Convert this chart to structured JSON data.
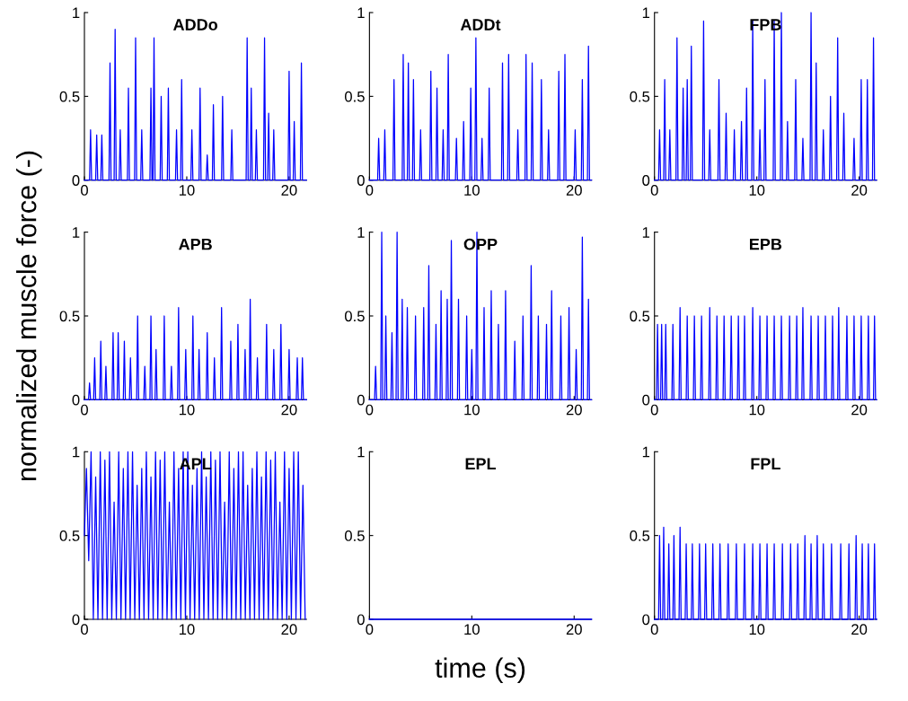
{
  "chart_data": [
    {
      "type": "line",
      "title": "ADDo",
      "xlim": [
        0,
        21.7
      ],
      "ylim": [
        0,
        1
      ],
      "xticks": [
        0,
        10,
        20
      ],
      "yticks": [
        0,
        0.5,
        1
      ],
      "series": [
        {
          "color": "#0000ff",
          "x": [
            0,
            0.5,
            0.6,
            0.7,
            1.1,
            1.2,
            1.3,
            1.6,
            1.7,
            1.8,
            2.4,
            2.5,
            2.6,
            2.9,
            3.0,
            3.1,
            3.4,
            3.5,
            3.6,
            4.2,
            4.3,
            4.4,
            4.9,
            5.0,
            5.1,
            5.5,
            5.6,
            5.7,
            6.4,
            6.5,
            6.6,
            6.7,
            6.8,
            6.9,
            7.4,
            7.5,
            7.6,
            8.1,
            8.2,
            8.3,
            8.9,
            9.0,
            9.1,
            9.4,
            9.5,
            9.6,
            10.4,
            10.5,
            10.6,
            11.2,
            11.3,
            11.4,
            11.9,
            12.0,
            12.1,
            12.5,
            12.6,
            12.7,
            13.4,
            13.5,
            13.6,
            14.3,
            14.4,
            14.5,
            15.8,
            15.9,
            16.0,
            16.2,
            16.3,
            16.4,
            16.7,
            16.8,
            16.9,
            17.5,
            17.6,
            17.7,
            17.9,
            18.0,
            18.1,
            18.4,
            18.5,
            18.6,
            19.9,
            20.0,
            20.1,
            20.4,
            20.5,
            20.6,
            21.1,
            21.2,
            21.3,
            21.7
          ],
          "values": [
            0,
            0,
            0.3,
            0,
            0,
            0.27,
            0,
            0,
            0.27,
            0,
            0,
            0.7,
            0,
            0,
            0.9,
            0,
            0,
            0.3,
            0,
            0,
            0.55,
            0,
            0,
            0.85,
            0,
            0,
            0.3,
            0,
            0,
            0.55,
            0,
            0,
            0.85,
            0,
            0,
            0.5,
            0,
            0,
            0.55,
            0,
            0,
            0.3,
            0,
            0,
            0.6,
            0,
            0,
            0.3,
            0,
            0,
            0.55,
            0,
            0,
            0.15,
            0,
            0,
            0.45,
            0,
            0,
            0.5,
            0,
            0,
            0.3,
            0,
            0,
            0.85,
            0,
            0,
            0.55,
            0,
            0,
            0.3,
            0,
            0,
            0.85,
            0,
            0,
            0.4,
            0,
            0,
            0.3,
            0,
            0,
            0.65,
            0,
            0,
            0.35,
            0,
            0,
            0.7,
            0,
            0
          ]
        }
      ]
    },
    {
      "type": "line",
      "title": "ADDt",
      "xlim": [
        0,
        21.7
      ],
      "ylim": [
        0,
        1
      ],
      "xticks": [
        0,
        10,
        20
      ],
      "yticks": [
        0,
        0.5,
        1
      ],
      "series": [
        {
          "color": "#0000ff",
          "x": [
            0,
            0.8,
            0.9,
            1.0,
            1.4,
            1.5,
            1.6,
            2.3,
            2.4,
            2.5,
            3.2,
            3.3,
            3.4,
            3.7,
            3.8,
            3.9,
            4.2,
            4.3,
            4.4,
            4.9,
            5.0,
            5.1,
            5.9,
            6.0,
            6.1,
            6.5,
            6.6,
            6.7,
            7.1,
            7.2,
            7.3,
            7.6,
            7.7,
            7.8,
            8.4,
            8.5,
            8.6,
            9.1,
            9.2,
            9.3,
            9.8,
            9.9,
            10.0,
            10.3,
            10.4,
            10.5,
            10.9,
            11.0,
            11.1,
            11.6,
            11.7,
            11.8,
            12.9,
            13.0,
            13.1,
            13.5,
            13.6,
            13.7,
            14.4,
            14.5,
            14.6,
            15.2,
            15.3,
            15.4,
            15.8,
            15.9,
            16.0,
            16.7,
            16.8,
            16.9,
            17.4,
            17.5,
            17.6,
            18.4,
            18.5,
            18.6,
            19.0,
            19.1,
            19.2,
            20.0,
            20.1,
            20.2,
            20.7,
            20.8,
            20.9,
            21.3,
            21.4,
            21.5,
            21.7
          ],
          "values": [
            0,
            0,
            0.25,
            0,
            0,
            0.3,
            0,
            0,
            0.6,
            0,
            0,
            0.75,
            0,
            0,
            0.7,
            0,
            0,
            0.6,
            0,
            0,
            0.3,
            0,
            0,
            0.65,
            0,
            0,
            0.55,
            0,
            0,
            0.3,
            0,
            0,
            0.75,
            0,
            0,
            0.25,
            0,
            0,
            0.35,
            0,
            0,
            0.55,
            0,
            0,
            0.85,
            0,
            0,
            0.25,
            0,
            0,
            0.55,
            0,
            0,
            0.7,
            0,
            0,
            0.75,
            0,
            0,
            0.3,
            0,
            0,
            0.75,
            0,
            0,
            0.7,
            0,
            0,
            0.6,
            0,
            0,
            0.3,
            0,
            0,
            0.65,
            0,
            0,
            0.75,
            0,
            0,
            0.3,
            0,
            0,
            0.6,
            0,
            0,
            0.8,
            0,
            0
          ]
        }
      ]
    },
    {
      "type": "line",
      "title": "FPB",
      "xlim": [
        0,
        21.7
      ],
      "ylim": [
        0,
        1
      ],
      "xticks": [
        0,
        10,
        20
      ],
      "yticks": [
        0,
        0.5,
        1
      ],
      "series": [
        {
          "color": "#0000ff",
          "x": [
            0,
            0.4,
            0.5,
            0.6,
            0.9,
            1.0,
            1.1,
            1.4,
            1.5,
            1.6,
            2.1,
            2.2,
            2.3,
            2.7,
            2.8,
            2.9,
            3.1,
            3.2,
            3.3,
            3.5,
            3.6,
            3.7,
            4.7,
            4.8,
            4.9,
            5.3,
            5.4,
            5.5,
            6.2,
            6.3,
            6.4,
            6.9,
            7.0,
            7.1,
            7.7,
            7.8,
            7.9,
            8.4,
            8.5,
            8.6,
            8.9,
            9.0,
            9.1,
            9.5,
            9.6,
            9.7,
            10.2,
            10.3,
            10.4,
            10.7,
            10.8,
            10.9,
            11.6,
            11.7,
            11.8,
            12.3,
            12.4,
            12.5,
            12.9,
            13.0,
            13.1,
            13.7,
            13.8,
            13.9,
            14.4,
            14.5,
            14.6,
            15.2,
            15.3,
            15.4,
            15.7,
            15.8,
            15.9,
            16.4,
            16.5,
            16.6,
            17.1,
            17.2,
            17.3,
            17.8,
            17.9,
            18.0,
            18.4,
            18.5,
            18.6,
            19.4,
            19.5,
            19.6,
            20.1,
            20.2,
            20.3,
            20.7,
            20.8,
            20.9,
            21.3,
            21.4,
            21.5,
            21.7
          ],
          "values": [
            0,
            0,
            0.3,
            0,
            0,
            0.6,
            0,
            0,
            0.3,
            0,
            0,
            0.85,
            0,
            0,
            0.55,
            0,
            0,
            0.6,
            0,
            0,
            0.8,
            0,
            0,
            0.95,
            0,
            0,
            0.3,
            0,
            0,
            0.6,
            0,
            0,
            0.4,
            0,
            0,
            0.3,
            0,
            0,
            0.35,
            0,
            0,
            0.55,
            0,
            0,
            0.95,
            0,
            0,
            0.3,
            0,
            0,
            0.6,
            0,
            0,
            0.95,
            0,
            0,
            1.0,
            0,
            0,
            0.35,
            0,
            0,
            0.6,
            0,
            0,
            0.25,
            0,
            0,
            1.0,
            0,
            0,
            0.7,
            0,
            0,
            0.3,
            0,
            0,
            0.5,
            0,
            0,
            0.85,
            0,
            0,
            0.4,
            0,
            0,
            0.25,
            0,
            0,
            0.6,
            0,
            0,
            0.6,
            0,
            0,
            0.85,
            0,
            0
          ]
        }
      ]
    },
    {
      "type": "line",
      "title": "APB",
      "ylabel": "normalized muscle force (-)",
      "xlim": [
        0,
        21.7
      ],
      "ylim": [
        0,
        1
      ],
      "xticks": [
        0,
        10,
        20
      ],
      "yticks": [
        0,
        0.5,
        1
      ],
      "series": [
        {
          "color": "#0000ff",
          "x": [
            0,
            0.4,
            0.5,
            0.6,
            0.9,
            1.0,
            1.1,
            1.5,
            1.6,
            1.7,
            2.0,
            2.1,
            2.2,
            2.7,
            2.8,
            2.9,
            3.2,
            3.3,
            3.4,
            3.8,
            3.9,
            4.0,
            4.4,
            4.5,
            4.6,
            5.1,
            5.2,
            5.3,
            5.8,
            5.9,
            6.0,
            6.4,
            6.5,
            6.6,
            6.9,
            7.0,
            7.1,
            7.7,
            7.8,
            7.9,
            8.4,
            8.5,
            8.6,
            9.1,
            9.2,
            9.3,
            9.8,
            9.9,
            10.0,
            10.5,
            10.6,
            10.7,
            11.1,
            11.2,
            11.3,
            11.9,
            12.0,
            12.1,
            12.6,
            12.7,
            12.8,
            13.3,
            13.4,
            13.5,
            14.2,
            14.3,
            14.4,
            14.9,
            15.0,
            15.1,
            15.6,
            15.7,
            15.8,
            16.1,
            16.2,
            16.3,
            16.8,
            16.9,
            17.0,
            17.7,
            17.8,
            17.9,
            18.4,
            18.5,
            18.6,
            19.1,
            19.2,
            19.3,
            19.9,
            20.0,
            20.1,
            20.7,
            20.8,
            20.9,
            21.2,
            21.3,
            21.4,
            21.7
          ],
          "values": [
            0,
            0,
            0.1,
            0,
            0,
            0.25,
            0,
            0,
            0.35,
            0,
            0,
            0.2,
            0,
            0,
            0.4,
            0,
            0,
            0.4,
            0,
            0,
            0.35,
            0,
            0,
            0.25,
            0,
            0,
            0.5,
            0,
            0,
            0.2,
            0,
            0,
            0.5,
            0,
            0,
            0.3,
            0,
            0,
            0.5,
            0,
            0,
            0.2,
            0,
            0,
            0.55,
            0,
            0,
            0.3,
            0,
            0,
            0.5,
            0,
            0,
            0.3,
            0,
            0,
            0.4,
            0,
            0,
            0.25,
            0,
            0,
            0.55,
            0,
            0,
            0.35,
            0,
            0,
            0.45,
            0,
            0,
            0.3,
            0,
            0,
            0.6,
            0,
            0,
            0.25,
            0,
            0,
            0.45,
            0,
            0,
            0.3,
            0,
            0,
            0.45,
            0,
            0,
            0.3,
            0,
            0,
            0.25,
            0,
            0,
            0.25,
            0,
            0
          ]
        }
      ]
    },
    {
      "type": "line",
      "title": "OPP",
      "xlim": [
        0,
        21.7
      ],
      "ylim": [
        0,
        1
      ],
      "xticks": [
        0,
        10,
        20
      ],
      "yticks": [
        0,
        0.5,
        1
      ],
      "series": [
        {
          "color": "#0000ff",
          "x": [
            0,
            0.5,
            0.6,
            0.7,
            1.1,
            1.2,
            1.3,
            1.5,
            1.6,
            1.7,
            2.1,
            2.2,
            2.3,
            2.6,
            2.7,
            2.8,
            3.1,
            3.2,
            3.3,
            3.6,
            3.7,
            3.8,
            4.4,
            4.5,
            4.6,
            5.2,
            5.3,
            5.4,
            5.7,
            5.8,
            5.9,
            6.4,
            6.5,
            6.6,
            6.9,
            7.0,
            7.1,
            7.5,
            7.6,
            7.7,
            7.9,
            8.0,
            8.1,
            8.6,
            8.7,
            8.8,
            9.4,
            9.5,
            9.6,
            9.9,
            10.0,
            10.1,
            10.4,
            10.5,
            10.6,
            11.1,
            11.2,
            11.3,
            11.8,
            11.9,
            12.0,
            12.5,
            12.6,
            12.7,
            13.2,
            13.3,
            13.4,
            14.1,
            14.2,
            14.3,
            14.9,
            15.0,
            15.1,
            15.7,
            15.8,
            15.9,
            16.4,
            16.5,
            16.6,
            17.2,
            17.3,
            17.4,
            17.7,
            17.8,
            17.9,
            18.6,
            18.7,
            18.8,
            19.4,
            19.5,
            19.6,
            20.1,
            20.2,
            20.3,
            20.7,
            20.8,
            20.9,
            21.3,
            21.4,
            21.5,
            21.7
          ],
          "values": [
            0,
            0,
            0.2,
            0,
            0,
            1.0,
            0,
            0,
            0.5,
            0,
            0,
            0.4,
            0,
            0,
            1.0,
            0,
            0,
            0.6,
            0,
            0,
            0.55,
            0,
            0,
            0.5,
            0,
            0,
            0.55,
            0,
            0,
            0.8,
            0,
            0,
            0.45,
            0,
            0,
            0.65,
            0,
            0,
            0.6,
            0,
            0,
            0.95,
            0,
            0,
            0.6,
            0,
            0,
            0.5,
            0,
            0,
            0.3,
            0,
            0,
            1.0,
            0,
            0,
            0.55,
            0,
            0,
            0.65,
            0,
            0,
            0.45,
            0,
            0,
            0.65,
            0,
            0,
            0.35,
            0,
            0,
            0.5,
            0,
            0,
            0.8,
            0,
            0,
            0.5,
            0,
            0,
            0.45,
            0,
            0,
            0.65,
            0,
            0,
            0.5,
            0,
            0,
            0.55,
            0,
            0,
            0.3,
            0,
            0,
            0.97,
            0,
            0,
            0.6,
            0,
            0
          ]
        }
      ]
    },
    {
      "type": "line",
      "title": "EPB",
      "xlim": [
        0,
        21.7
      ],
      "ylim": [
        0,
        1
      ],
      "xticks": [
        0,
        10,
        20
      ],
      "yticks": [
        0,
        0.5,
        1
      ],
      "series": [
        {
          "color": "#0000ff",
          "x": [
            0,
            0.2,
            0.3,
            0.4,
            0.6,
            0.7,
            0.8,
            1.0,
            1.1,
            1.2,
            1.7,
            1.8,
            1.9,
            2.4,
            2.5,
            2.6,
            3.1,
            3.2,
            3.3,
            3.8,
            3.9,
            4.0,
            4.5,
            4.6,
            4.7,
            5.3,
            5.4,
            5.5,
            6.0,
            6.1,
            6.2,
            6.7,
            6.8,
            6.9,
            7.4,
            7.5,
            7.6,
            8.1,
            8.2,
            8.3,
            8.7,
            8.8,
            8.9,
            9.5,
            9.6,
            9.7,
            10.2,
            10.3,
            10.4,
            10.9,
            11.0,
            11.1,
            11.6,
            11.7,
            11.8,
            12.3,
            12.4,
            12.5,
            13.1,
            13.2,
            13.3,
            13.8,
            13.9,
            14.0,
            14.4,
            14.5,
            14.6,
            15.2,
            15.3,
            15.4,
            15.9,
            16.0,
            16.1,
            16.6,
            16.7,
            16.8,
            17.3,
            17.4,
            17.5,
            17.9,
            18.0,
            18.1,
            18.7,
            18.8,
            18.9,
            19.4,
            19.5,
            19.6,
            20.1,
            20.2,
            20.3,
            20.8,
            20.9,
            21.0,
            21.4,
            21.5,
            21.6,
            21.7
          ],
          "values": [
            0,
            0,
            0.45,
            0,
            0,
            0.45,
            0,
            0,
            0.45,
            0,
            0,
            0.45,
            0,
            0,
            0.55,
            0,
            0,
            0.5,
            0,
            0,
            0.5,
            0,
            0,
            0.5,
            0,
            0,
            0.55,
            0,
            0,
            0.5,
            0,
            0,
            0.5,
            0,
            0,
            0.5,
            0,
            0,
            0.5,
            0,
            0,
            0.5,
            0,
            0,
            0.55,
            0,
            0,
            0.5,
            0,
            0,
            0.5,
            0,
            0,
            0.5,
            0,
            0,
            0.5,
            0,
            0,
            0.5,
            0,
            0,
            0.5,
            0,
            0,
            0.55,
            0,
            0,
            0.5,
            0,
            0,
            0.5,
            0,
            0,
            0.5,
            0,
            0,
            0.5,
            0,
            0,
            0.55,
            0,
            0,
            0.5,
            0,
            0,
            0.5,
            0,
            0,
            0.5,
            0,
            0,
            0.5,
            0,
            0,
            0.5,
            0,
            0
          ]
        }
      ]
    },
    {
      "type": "line",
      "title": "APL",
      "xlim": [
        0,
        21.7
      ],
      "ylim": [
        0,
        1
      ],
      "xticks": [
        0,
        10,
        20
      ],
      "yticks": [
        0,
        0.5,
        1
      ],
      "series": [
        {
          "color": "#0000ff",
          "x": [
            0,
            0.2,
            0.42,
            0.65,
            0.87,
            1.1,
            1.32,
            1.55,
            1.77,
            2.0,
            2.22,
            2.45,
            2.67,
            2.9,
            3.12,
            3.35,
            3.57,
            3.8,
            4.02,
            4.25,
            4.47,
            4.7,
            4.92,
            5.15,
            5.37,
            5.6,
            5.82,
            6.05,
            6.27,
            6.5,
            6.72,
            6.95,
            7.17,
            7.4,
            7.62,
            7.85,
            8.07,
            8.3,
            8.52,
            8.75,
            8.97,
            9.2,
            9.42,
            9.65,
            9.87,
            10.1,
            10.32,
            10.55,
            10.77,
            11.0,
            11.22,
            11.45,
            11.67,
            11.9,
            12.12,
            12.35,
            12.57,
            12.8,
            13.02,
            13.25,
            13.47,
            13.7,
            13.92,
            14.15,
            14.37,
            14.6,
            14.82,
            15.05,
            15.27,
            15.5,
            15.72,
            15.95,
            16.17,
            16.4,
            16.62,
            16.85,
            17.07,
            17.3,
            17.52,
            17.75,
            17.97,
            18.2,
            18.42,
            18.65,
            18.87,
            19.1,
            19.32,
            19.55,
            19.77,
            20.0,
            20.22,
            20.45,
            20.67,
            20.9,
            21.12,
            21.35,
            21.57
          ],
          "values": [
            0.5,
            0.9,
            0.35,
            1,
            0,
            0.85,
            0,
            1,
            0,
            0.95,
            0,
            1,
            0,
            0.7,
            0,
            1,
            0,
            0.9,
            0,
            1,
            0,
            1,
            0,
            0.8,
            0,
            0.9,
            0,
            1,
            0,
            0.85,
            0,
            1,
            0,
            0.95,
            0,
            1,
            0,
            0.7,
            0,
            1,
            0,
            0.9,
            0,
            1,
            0,
            1,
            0,
            0.8,
            0,
            0.9,
            0,
            1,
            0,
            0.85,
            0,
            1,
            0,
            0.95,
            0,
            1,
            0,
            0.7,
            0,
            1,
            0,
            0.9,
            0,
            1,
            0,
            1,
            0,
            0.8,
            0,
            0.9,
            0,
            1,
            0,
            0.85,
            0,
            1,
            0,
            0.95,
            0,
            1,
            0,
            0.7,
            0,
            1,
            0,
            0.9,
            0,
            1,
            0,
            1,
            0,
            0.8,
            0
          ]
        }
      ]
    },
    {
      "type": "line",
      "title": "EPL",
      "xlabel": "time (s)",
      "xlim": [
        0,
        21.7
      ],
      "ylim": [
        0,
        1
      ],
      "xticks": [
        0,
        10,
        20
      ],
      "yticks": [
        0,
        0.5,
        1
      ],
      "series": [
        {
          "color": "#0000ff",
          "x": [
            0,
            21.7
          ],
          "values": [
            0,
            0
          ]
        }
      ]
    },
    {
      "type": "line",
      "title": "FPL",
      "xlim": [
        0,
        21.7
      ],
      "ylim": [
        0,
        1
      ],
      "xticks": [
        0,
        10,
        20
      ],
      "yticks": [
        0,
        0.5,
        1
      ],
      "series": [
        {
          "color": "#0000ff",
          "x": [
            0,
            0.4,
            0.5,
            0.6,
            0.8,
            0.9,
            1.0,
            1.3,
            1.4,
            1.5,
            1.8,
            1.9,
            2.0,
            2.4,
            2.5,
            2.6,
            3.0,
            3.1,
            3.2,
            3.6,
            3.7,
            3.8,
            4.3,
            4.4,
            4.5,
            4.9,
            5.0,
            5.1,
            5.6,
            5.7,
            5.8,
            6.3,
            6.4,
            6.5,
            7.1,
            7.2,
            7.3,
            7.9,
            8.0,
            8.1,
            8.7,
            8.8,
            8.9,
            9.5,
            9.6,
            9.7,
            10.2,
            10.3,
            10.4,
            10.9,
            11.0,
            11.1,
            11.6,
            11.7,
            11.8,
            12.4,
            12.5,
            12.6,
            13.2,
            13.3,
            13.4,
            13.9,
            14.0,
            14.1,
            14.6,
            14.7,
            14.8,
            15.2,
            15.3,
            15.4,
            15.8,
            15.9,
            16.0,
            16.4,
            16.5,
            16.6,
            17.2,
            17.3,
            17.4,
            18.1,
            18.2,
            18.3,
            18.9,
            19.0,
            19.1,
            19.6,
            19.7,
            19.8,
            20.2,
            20.3,
            20.4,
            20.8,
            20.9,
            21.0,
            21.4,
            21.5,
            21.6,
            21.7
          ],
          "values": [
            0,
            0,
            0.5,
            0,
            0,
            0.55,
            0,
            0,
            0.45,
            0,
            0,
            0.5,
            0,
            0,
            0.55,
            0,
            0,
            0.45,
            0,
            0,
            0.45,
            0,
            0,
            0.45,
            0,
            0,
            0.45,
            0,
            0,
            0.45,
            0,
            0,
            0.45,
            0,
            0,
            0.45,
            0,
            0,
            0.45,
            0,
            0,
            0.45,
            0,
            0,
            0.45,
            0,
            0,
            0.45,
            0,
            0,
            0.45,
            0,
            0,
            0.45,
            0,
            0,
            0.45,
            0,
            0,
            0.45,
            0,
            0,
            0.45,
            0,
            0,
            0.5,
            0,
            0,
            0.45,
            0,
            0,
            0.5,
            0,
            0,
            0.45,
            0,
            0,
            0.45,
            0,
            0,
            0.45,
            0,
            0,
            0.45,
            0,
            0,
            0.5,
            0,
            0,
            0.45,
            0,
            0,
            0.45,
            0,
            0,
            0.45,
            0,
            0
          ]
        }
      ]
    }
  ]
}
